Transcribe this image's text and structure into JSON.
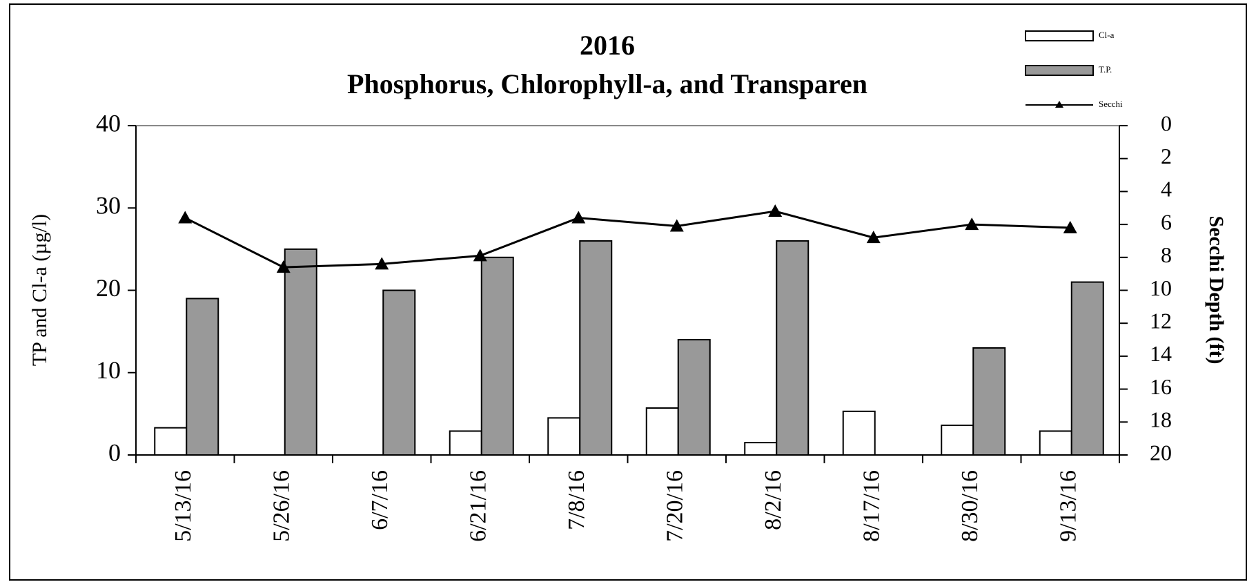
{
  "chart_data": {
    "type": "bar",
    "title": "2016",
    "subtitle": "Phosphorus, Chlorophyll-a, and Transparen",
    "y_label": "TP and Cl-a (µg/l)",
    "y2_label": "Secchi Depth (ft)",
    "categories": [
      "5/13/16",
      "5/26/16",
      "6/7/16",
      "6/21/16",
      "7/8/16",
      "7/20/16",
      "8/2/16",
      "8/17/16",
      "8/30/16",
      "9/13/16"
    ],
    "series": [
      {
        "name": "Cl-a",
        "type": "bar",
        "color": "#ffffff",
        "values": [
          3.3,
          null,
          null,
          2.9,
          4.5,
          5.7,
          1.5,
          5.3,
          3.6,
          2.9
        ]
      },
      {
        "name": "T.P.",
        "type": "bar",
        "color": "#999999",
        "values": [
          19,
          25,
          20,
          24,
          26,
          14,
          26,
          null,
          13,
          21
        ]
      },
      {
        "name": "Secchi",
        "type": "line",
        "axis": "y2",
        "color": "#000000",
        "values": [
          5.6,
          8.6,
          8.4,
          7.9,
          5.6,
          6.1,
          5.2,
          6.8,
          6.0,
          6.2
        ]
      }
    ],
    "ylim": [
      0,
      40
    ],
    "yticks": [
      0,
      10,
      20,
      30,
      40
    ],
    "y2lim": [
      20,
      0
    ],
    "y2ticks": [
      0,
      2,
      4,
      6,
      8,
      10,
      12,
      14,
      16,
      18,
      20
    ],
    "legend": "top-right"
  }
}
